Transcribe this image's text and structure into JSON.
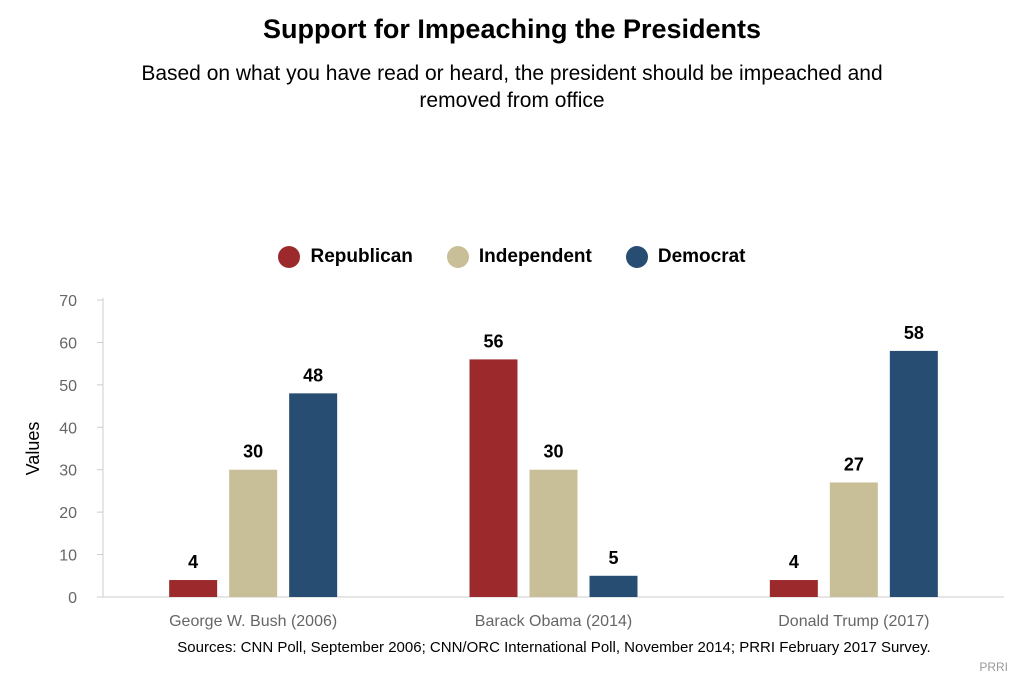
{
  "chart_data": {
    "type": "bar",
    "title": "Support for Impeaching the Presidents",
    "subtitle": "Based on what you have read or heard, the president should be impeached and removed from office",
    "ylabel": "Values",
    "xlabel": "",
    "ylim": [
      0,
      70
    ],
    "yticks": [
      0,
      10,
      20,
      30,
      40,
      50,
      60,
      70
    ],
    "categories": [
      "George W. Bush (2006)",
      "Barack Obama (2014)",
      "Donald Trump (2017)"
    ],
    "series": [
      {
        "name": "Republican",
        "color": "#9c2a2d",
        "values": [
          4,
          56,
          4
        ]
      },
      {
        "name": "Independent",
        "color": "#c8bf98",
        "values": [
          30,
          30,
          27
        ]
      },
      {
        "name": "Democrat",
        "color": "#284d73",
        "values": [
          48,
          5,
          58
        ]
      }
    ],
    "legend_position": "top-center",
    "grid": false
  },
  "footer": {
    "sources": "Sources: CNN Poll, September 2006; CNN/ORC International Poll, November 2014; PRRI February 2017 Survey.",
    "credit": "PRRI"
  }
}
